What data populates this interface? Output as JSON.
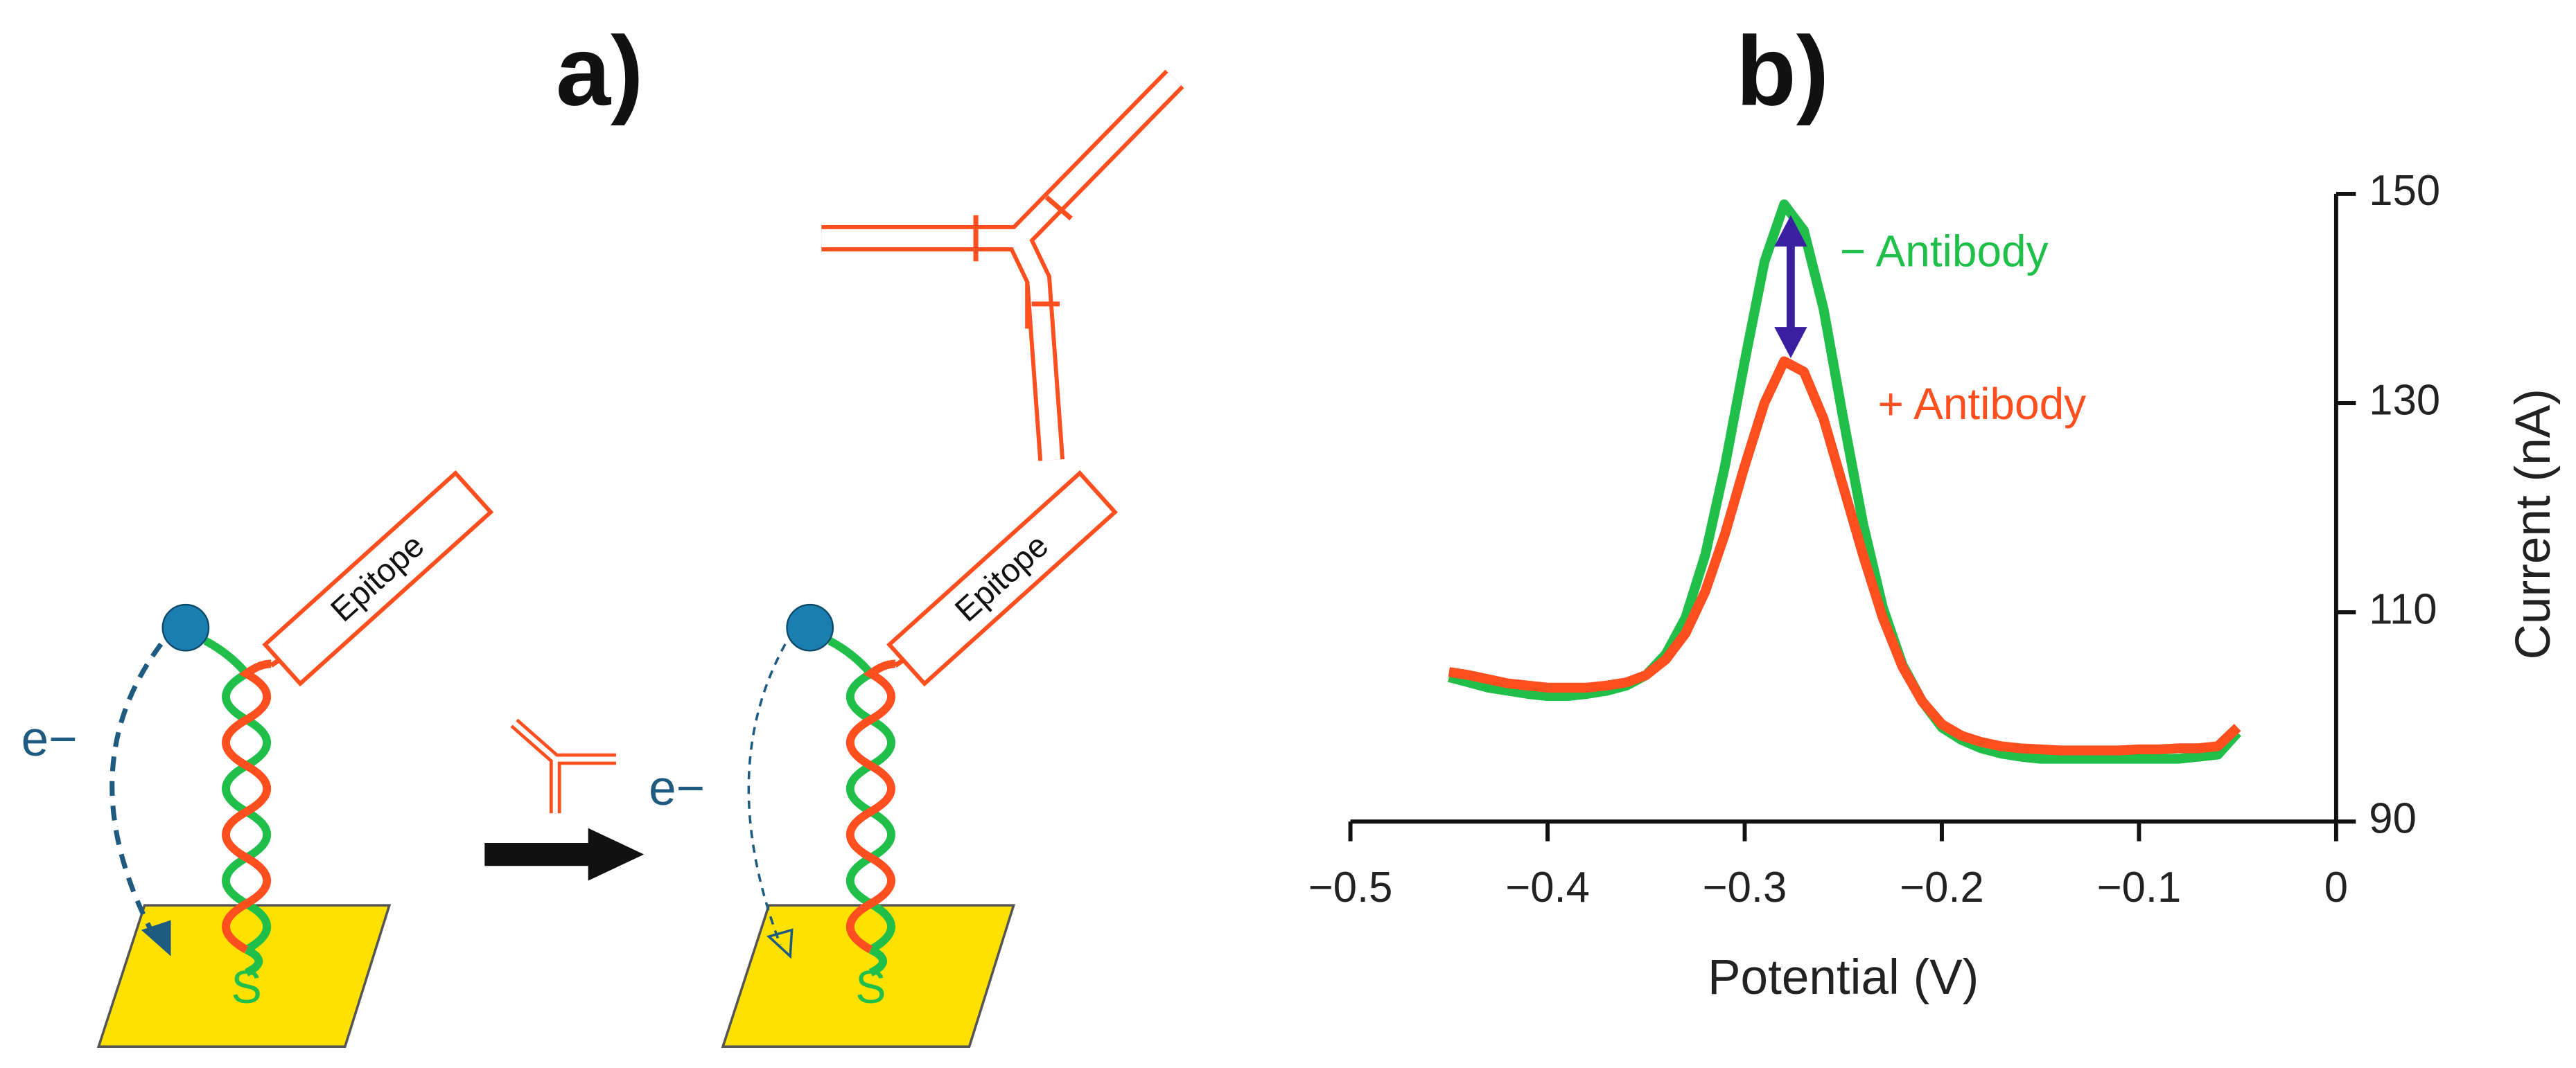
{
  "panels": {
    "a": "a)",
    "b": "b)"
  },
  "panel_a": {
    "left": {
      "epitope": "Epitope",
      "electron": "e−",
      "anchor_atom": "S"
    },
    "right": {
      "epitope": "Epitope",
      "electron": "e−",
      "anchor_atom": "S"
    }
  },
  "chart_data": {
    "type": "line",
    "xlabel": "Potential (V)",
    "ylabel": "Current (nA)",
    "y_axis_side": "right",
    "grid": false,
    "xlim": [
      -0.5,
      0
    ],
    "ylim": [
      90,
      150
    ],
    "xticks": [
      {
        "value": -0.5,
        "label": "−0.5"
      },
      {
        "value": -0.4,
        "label": "−0.4"
      },
      {
        "value": -0.3,
        "label": "−0.3"
      },
      {
        "value": -0.2,
        "label": "−0.2"
      },
      {
        "value": -0.1,
        "label": "−0.1"
      },
      0
    ],
    "yticks": [
      90,
      110,
      130,
      150
    ],
    "x": [
      -0.45,
      -0.44,
      -0.43,
      -0.42,
      -0.41,
      -0.4,
      -0.39,
      -0.38,
      -0.37,
      -0.36,
      -0.35,
      -0.34,
      -0.33,
      -0.32,
      -0.31,
      -0.3,
      -0.29,
      -0.28,
      -0.27,
      -0.26,
      -0.25,
      -0.24,
      -0.23,
      -0.22,
      -0.21,
      -0.2,
      -0.19,
      -0.18,
      -0.17,
      -0.16,
      -0.15,
      -0.14,
      -0.13,
      -0.12,
      -0.11,
      -0.1,
      -0.09,
      -0.08,
      -0.07,
      -0.06,
      -0.05
    ],
    "series": [
      {
        "name": "− Antibody",
        "color": "#1fbf4a",
        "values": [
          103.8,
          103.3,
          102.8,
          102.5,
          102.2,
          102.0,
          102.0,
          102.2,
          102.5,
          103.0,
          104.0,
          106.0,
          109.5,
          115.5,
          124.0,
          134.0,
          143.5,
          149.0,
          146.5,
          139.0,
          128.5,
          118.5,
          110.5,
          105.0,
          101.5,
          99.0,
          97.8,
          97.0,
          96.5,
          96.2,
          96.0,
          96.0,
          96.0,
          96.0,
          96.0,
          96.0,
          96.0,
          96.0,
          96.2,
          96.4,
          98.5
        ]
      },
      {
        "name": "+ Antibody",
        "color": "#ff4f1f",
        "values": [
          104.3,
          104.0,
          103.6,
          103.2,
          103.0,
          102.8,
          102.8,
          102.8,
          103.0,
          103.3,
          104.0,
          105.5,
          108.0,
          112.0,
          117.5,
          124.0,
          130.0,
          134.0,
          133.0,
          128.5,
          122.0,
          115.5,
          109.5,
          104.8,
          101.5,
          99.3,
          98.2,
          97.6,
          97.2,
          97.0,
          96.9,
          96.8,
          96.8,
          96.8,
          96.8,
          96.9,
          96.9,
          97.0,
          97.0,
          97.2,
          99.0
        ]
      }
    ]
  }
}
